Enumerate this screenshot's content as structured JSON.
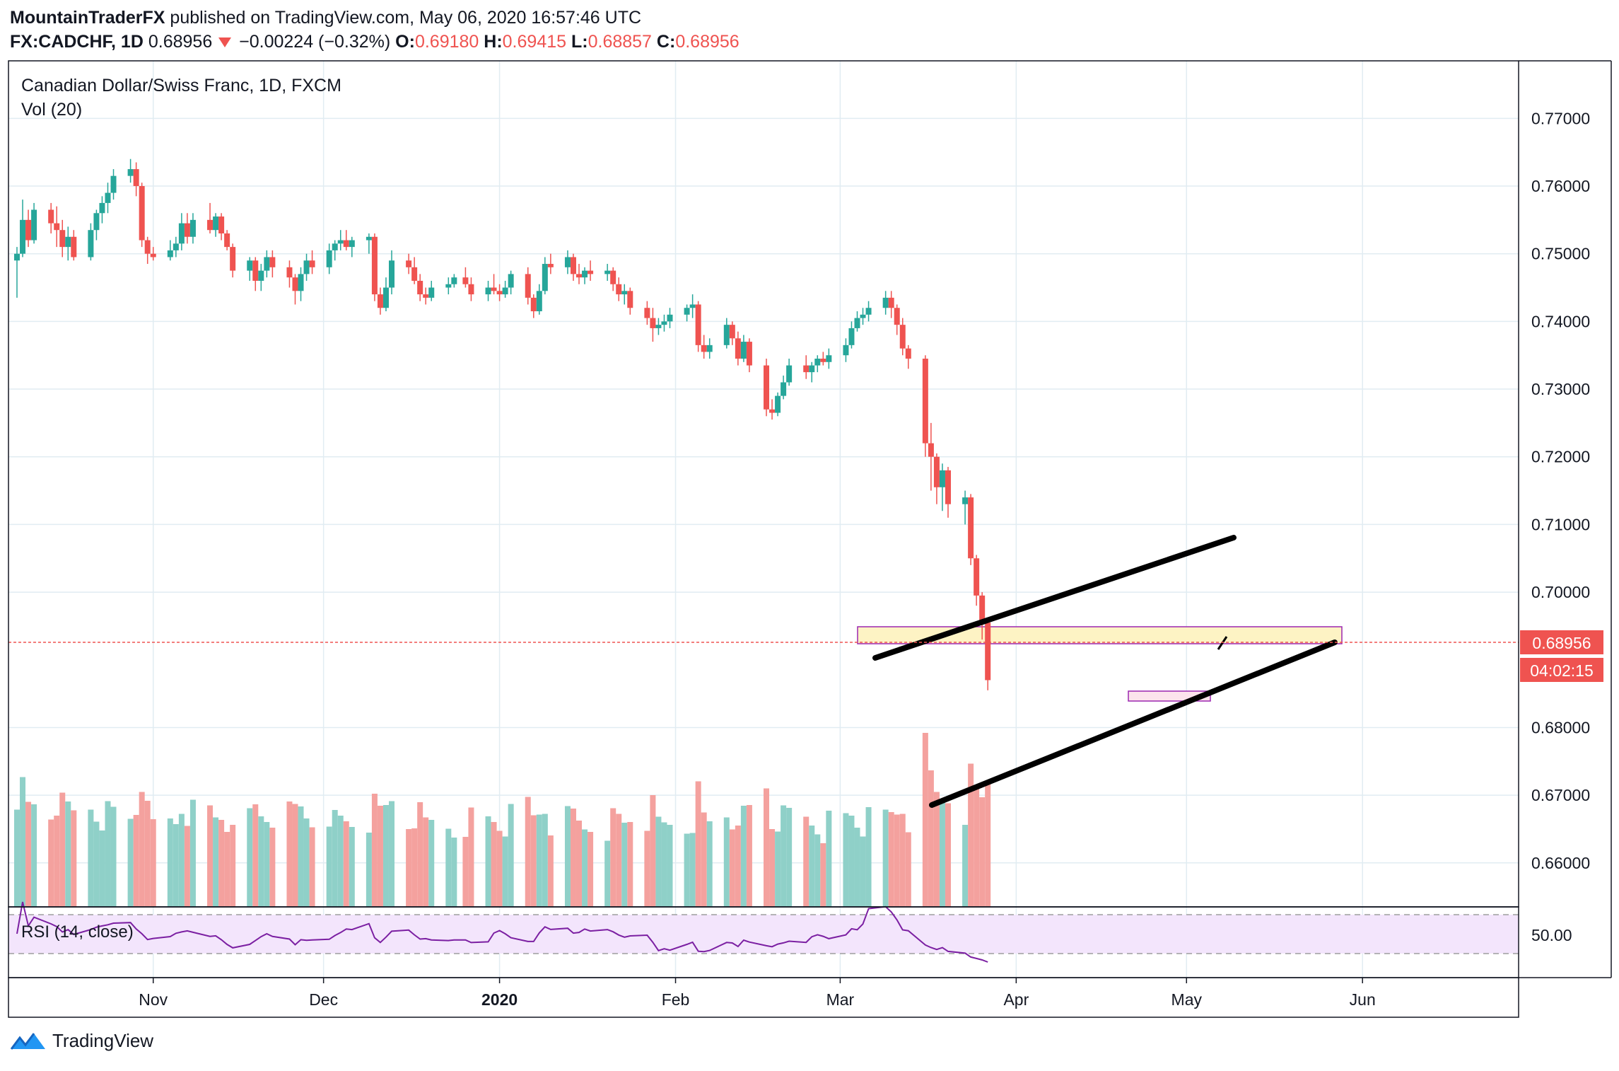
{
  "header": {
    "author": "MountainTraderFX",
    "published_text": "published on TradingView.com, May 06, 2020 16:57:46 UTC",
    "symbol": "FX:CADCHF, 1D",
    "last": "0.68956",
    "change": "−0.00224 (−0.32%)",
    "o_label": "O:",
    "o_value": "0.69180",
    "h_label": "H:",
    "h_value": "0.69415",
    "l_label": "L:",
    "l_value": "0.68857",
    "c_label": "C:",
    "c_value": "0.68956"
  },
  "pane": {
    "title": "Canadian Dollar/Swiss Franc, 1D, FXCM",
    "vol_label": "Vol (20)",
    "rsi_label": "RSI (14, close)",
    "price_tag": "0.68956",
    "countdown_tag": "04:02:15",
    "rsi_tick": "50.00"
  },
  "footer": {
    "brand": "TradingView"
  },
  "colors": {
    "up": "#26a69a",
    "down": "#ef5350",
    "up_vol": "#8fd0c8",
    "down_vol": "#f4a19e",
    "grid": "#e1ecf2",
    "zone_fill": "#fdf3c4",
    "zone_border": "#9c27b0",
    "rsi_fill": "#f3e5fc",
    "rsi_line": "#7b1fa2",
    "tag_bg": "#ef5350"
  },
  "chart_data": {
    "type": "candlestick",
    "title": "Canadian Dollar/Swiss Franc, 1D, FXCM",
    "ylim": [
      0.6535,
      0.7785
    ],
    "y_ticks": [
      "0.77000",
      "0.76000",
      "0.75000",
      "0.74000",
      "0.73000",
      "0.72000",
      "0.71000",
      "0.70000",
      "0.68000",
      "0.67000",
      "0.66000"
    ],
    "y_tick_values": [
      0.77,
      0.76,
      0.75,
      0.74,
      0.73,
      0.72,
      0.71,
      0.7,
      0.68,
      0.67,
      0.66
    ],
    "x_ticks": [
      "Nov",
      "Dec",
      "2020",
      "Feb",
      "Mar",
      "Apr",
      "May",
      "Jun"
    ],
    "x_tick_dates": [
      "2019-11-01",
      "2019-12-01",
      "2020-01-01",
      "2020-02-01",
      "2020-03-01",
      "2020-04-01",
      "2020-05-01",
      "2020-06-01"
    ],
    "x_range": [
      "2019-10-08",
      "2020-06-27"
    ],
    "ohlc": [
      {
        "d": "2019-10-08",
        "o": 0.749,
        "h": 0.751,
        "l": 0.7435,
        "c": 0.75
      },
      {
        "d": "2019-10-09",
        "o": 0.75,
        "h": 0.758,
        "l": 0.7495,
        "c": 0.755
      },
      {
        "d": "2019-10-10",
        "o": 0.755,
        "h": 0.7565,
        "l": 0.751,
        "c": 0.752
      },
      {
        "d": "2019-10-11",
        "o": 0.752,
        "h": 0.7575,
        "l": 0.7515,
        "c": 0.7565
      },
      {
        "d": "2019-10-14",
        "o": 0.7565,
        "h": 0.7575,
        "l": 0.753,
        "c": 0.7545
      },
      {
        "d": "2019-10-15",
        "o": 0.7545,
        "h": 0.757,
        "l": 0.751,
        "c": 0.7535
      },
      {
        "d": "2019-10-16",
        "o": 0.7535,
        "h": 0.755,
        "l": 0.7495,
        "c": 0.751
      },
      {
        "d": "2019-10-17",
        "o": 0.751,
        "h": 0.754,
        "l": 0.749,
        "c": 0.7525
      },
      {
        "d": "2019-10-18",
        "o": 0.7525,
        "h": 0.7535,
        "l": 0.749,
        "c": 0.7495
      },
      {
        "d": "2019-10-21",
        "o": 0.7495,
        "h": 0.7545,
        "l": 0.749,
        "c": 0.7535
      },
      {
        "d": "2019-10-22",
        "o": 0.7535,
        "h": 0.7565,
        "l": 0.752,
        "c": 0.756
      },
      {
        "d": "2019-10-23",
        "o": 0.756,
        "h": 0.7585,
        "l": 0.7545,
        "c": 0.7575
      },
      {
        "d": "2019-10-24",
        "o": 0.7575,
        "h": 0.7605,
        "l": 0.756,
        "c": 0.759
      },
      {
        "d": "2019-10-25",
        "o": 0.759,
        "h": 0.7625,
        "l": 0.758,
        "c": 0.7615
      },
      {
        "d": "2019-10-28",
        "o": 0.7615,
        "h": 0.764,
        "l": 0.7605,
        "c": 0.7625
      },
      {
        "d": "2019-10-29",
        "o": 0.7625,
        "h": 0.7635,
        "l": 0.7585,
        "c": 0.76
      },
      {
        "d": "2019-10-30",
        "o": 0.76,
        "h": 0.7605,
        "l": 0.751,
        "c": 0.752
      },
      {
        "d": "2019-10-31",
        "o": 0.752,
        "h": 0.7525,
        "l": 0.7485,
        "c": 0.75
      },
      {
        "d": "2019-11-01",
        "o": 0.75,
        "h": 0.751,
        "l": 0.749,
        "c": 0.7495
      },
      {
        "d": "2019-11-04",
        "o": 0.7495,
        "h": 0.752,
        "l": 0.749,
        "c": 0.7505
      },
      {
        "d": "2019-11-05",
        "o": 0.7505,
        "h": 0.7525,
        "l": 0.7495,
        "c": 0.7515
      },
      {
        "d": "2019-11-06",
        "o": 0.7515,
        "h": 0.756,
        "l": 0.7505,
        "c": 0.7545
      },
      {
        "d": "2019-11-07",
        "o": 0.7545,
        "h": 0.756,
        "l": 0.7515,
        "c": 0.7525
      },
      {
        "d": "2019-11-08",
        "o": 0.7525,
        "h": 0.756,
        "l": 0.7515,
        "c": 0.755
      },
      {
        "d": "2019-11-11",
        "o": 0.755,
        "h": 0.7575,
        "l": 0.753,
        "c": 0.7535
      },
      {
        "d": "2019-11-12",
        "o": 0.7535,
        "h": 0.756,
        "l": 0.7525,
        "c": 0.7555
      },
      {
        "d": "2019-11-13",
        "o": 0.7555,
        "h": 0.756,
        "l": 0.752,
        "c": 0.753
      },
      {
        "d": "2019-11-14",
        "o": 0.753,
        "h": 0.7535,
        "l": 0.7505,
        "c": 0.751
      },
      {
        "d": "2019-11-15",
        "o": 0.751,
        "h": 0.7515,
        "l": 0.7465,
        "c": 0.7475
      },
      {
        "d": "2019-11-18",
        "o": 0.7475,
        "h": 0.7495,
        "l": 0.746,
        "c": 0.749
      },
      {
        "d": "2019-11-19",
        "o": 0.749,
        "h": 0.7495,
        "l": 0.7445,
        "c": 0.746
      },
      {
        "d": "2019-11-20",
        "o": 0.746,
        "h": 0.7485,
        "l": 0.7445,
        "c": 0.7475
      },
      {
        "d": "2019-11-21",
        "o": 0.7475,
        "h": 0.7505,
        "l": 0.7465,
        "c": 0.7495
      },
      {
        "d": "2019-11-22",
        "o": 0.7495,
        "h": 0.7505,
        "l": 0.7465,
        "c": 0.748
      },
      {
        "d": "2019-11-25",
        "o": 0.748,
        "h": 0.749,
        "l": 0.745,
        "c": 0.7465
      },
      {
        "d": "2019-11-26",
        "o": 0.7465,
        "h": 0.747,
        "l": 0.7425,
        "c": 0.7445
      },
      {
        "d": "2019-11-27",
        "o": 0.7445,
        "h": 0.748,
        "l": 0.743,
        "c": 0.747
      },
      {
        "d": "2019-11-28",
        "o": 0.747,
        "h": 0.75,
        "l": 0.746,
        "c": 0.749
      },
      {
        "d": "2019-11-29",
        "o": 0.749,
        "h": 0.7505,
        "l": 0.747,
        "c": 0.748
      },
      {
        "d": "2019-12-02",
        "o": 0.748,
        "h": 0.7515,
        "l": 0.747,
        "c": 0.7505
      },
      {
        "d": "2019-12-03",
        "o": 0.7505,
        "h": 0.752,
        "l": 0.749,
        "c": 0.7515
      },
      {
        "d": "2019-12-04",
        "o": 0.7515,
        "h": 0.7535,
        "l": 0.7505,
        "c": 0.752
      },
      {
        "d": "2019-12-05",
        "o": 0.752,
        "h": 0.7535,
        "l": 0.7505,
        "c": 0.751
      },
      {
        "d": "2019-12-06",
        "o": 0.751,
        "h": 0.7525,
        "l": 0.7495,
        "c": 0.752
      },
      {
        "d": "2019-12-09",
        "o": 0.752,
        "h": 0.753,
        "l": 0.75,
        "c": 0.7525
      },
      {
        "d": "2019-12-10",
        "o": 0.7525,
        "h": 0.753,
        "l": 0.743,
        "c": 0.744
      },
      {
        "d": "2019-12-11",
        "o": 0.744,
        "h": 0.745,
        "l": 0.741,
        "c": 0.742
      },
      {
        "d": "2019-12-12",
        "o": 0.742,
        "h": 0.7465,
        "l": 0.7415,
        "c": 0.745
      },
      {
        "d": "2019-12-13",
        "o": 0.745,
        "h": 0.7505,
        "l": 0.744,
        "c": 0.749
      },
      {
        "d": "2019-12-16",
        "o": 0.749,
        "h": 0.75,
        "l": 0.747,
        "c": 0.748
      },
      {
        "d": "2019-12-17",
        "o": 0.748,
        "h": 0.7495,
        "l": 0.7455,
        "c": 0.746
      },
      {
        "d": "2019-12-18",
        "o": 0.746,
        "h": 0.747,
        "l": 0.743,
        "c": 0.744
      },
      {
        "d": "2019-12-19",
        "o": 0.744,
        "h": 0.745,
        "l": 0.7425,
        "c": 0.7435
      },
      {
        "d": "2019-12-20",
        "o": 0.7435,
        "h": 0.746,
        "l": 0.743,
        "c": 0.745
      },
      {
        "d": "2019-12-23",
        "o": 0.745,
        "h": 0.7465,
        "l": 0.744,
        "c": 0.7455
      },
      {
        "d": "2019-12-24",
        "o": 0.7455,
        "h": 0.747,
        "l": 0.745,
        "c": 0.7465
      },
      {
        "d": "2019-12-26",
        "o": 0.7465,
        "h": 0.748,
        "l": 0.745,
        "c": 0.7455
      },
      {
        "d": "2019-12-27",
        "o": 0.7455,
        "h": 0.7465,
        "l": 0.743,
        "c": 0.744
      },
      {
        "d": "2019-12-30",
        "o": 0.744,
        "h": 0.746,
        "l": 0.743,
        "c": 0.745
      },
      {
        "d": "2019-12-31",
        "o": 0.745,
        "h": 0.747,
        "l": 0.744,
        "c": 0.7445
      },
      {
        "d": "2020-01-01",
        "o": 0.7445,
        "h": 0.7455,
        "l": 0.743,
        "c": 0.744
      },
      {
        "d": "2020-01-02",
        "o": 0.744,
        "h": 0.746,
        "l": 0.7435,
        "c": 0.745
      },
      {
        "d": "2020-01-03",
        "o": 0.745,
        "h": 0.7475,
        "l": 0.744,
        "c": 0.747
      },
      {
        "d": "2020-01-06",
        "o": 0.747,
        "h": 0.748,
        "l": 0.7425,
        "c": 0.7435
      },
      {
        "d": "2020-01-07",
        "o": 0.7435,
        "h": 0.744,
        "l": 0.7405,
        "c": 0.7415
      },
      {
        "d": "2020-01-08",
        "o": 0.7415,
        "h": 0.7455,
        "l": 0.741,
        "c": 0.7445
      },
      {
        "d": "2020-01-09",
        "o": 0.7445,
        "h": 0.7495,
        "l": 0.744,
        "c": 0.7485
      },
      {
        "d": "2020-01-10",
        "o": 0.7485,
        "h": 0.75,
        "l": 0.747,
        "c": 0.748
      },
      {
        "d": "2020-01-13",
        "o": 0.748,
        "h": 0.7505,
        "l": 0.747,
        "c": 0.7495
      },
      {
        "d": "2020-01-14",
        "o": 0.7495,
        "h": 0.75,
        "l": 0.746,
        "c": 0.747
      },
      {
        "d": "2020-01-15",
        "o": 0.747,
        "h": 0.7485,
        "l": 0.7455,
        "c": 0.7465
      },
      {
        "d": "2020-01-16",
        "o": 0.7465,
        "h": 0.748,
        "l": 0.7455,
        "c": 0.7475
      },
      {
        "d": "2020-01-17",
        "o": 0.7475,
        "h": 0.749,
        "l": 0.746,
        "c": 0.747
      },
      {
        "d": "2020-01-20",
        "o": 0.747,
        "h": 0.7485,
        "l": 0.746,
        "c": 0.7475
      },
      {
        "d": "2020-01-21",
        "o": 0.7475,
        "h": 0.748,
        "l": 0.7445,
        "c": 0.7455
      },
      {
        "d": "2020-01-22",
        "o": 0.7455,
        "h": 0.7465,
        "l": 0.743,
        "c": 0.744
      },
      {
        "d": "2020-01-23",
        "o": 0.744,
        "h": 0.7455,
        "l": 0.7425,
        "c": 0.7445
      },
      {
        "d": "2020-01-24",
        "o": 0.7445,
        "h": 0.745,
        "l": 0.741,
        "c": 0.742
      },
      {
        "d": "2020-01-27",
        "o": 0.742,
        "h": 0.743,
        "l": 0.7395,
        "c": 0.7405
      },
      {
        "d": "2020-01-28",
        "o": 0.7405,
        "h": 0.742,
        "l": 0.737,
        "c": 0.739
      },
      {
        "d": "2020-01-29",
        "o": 0.739,
        "h": 0.7405,
        "l": 0.738,
        "c": 0.7395
      },
      {
        "d": "2020-01-30",
        "o": 0.7395,
        "h": 0.741,
        "l": 0.7385,
        "c": 0.74
      },
      {
        "d": "2020-01-31",
        "o": 0.74,
        "h": 0.742,
        "l": 0.739,
        "c": 0.741
      },
      {
        "d": "2020-02-03",
        "o": 0.741,
        "h": 0.7425,
        "l": 0.74,
        "c": 0.742
      },
      {
        "d": "2020-02-04",
        "o": 0.742,
        "h": 0.744,
        "l": 0.7405,
        "c": 0.7425
      },
      {
        "d": "2020-02-05",
        "o": 0.7425,
        "h": 0.743,
        "l": 0.7355,
        "c": 0.7365
      },
      {
        "d": "2020-02-06",
        "o": 0.7365,
        "h": 0.738,
        "l": 0.7345,
        "c": 0.7355
      },
      {
        "d": "2020-02-07",
        "o": 0.7355,
        "h": 0.7375,
        "l": 0.7345,
        "c": 0.7365
      },
      {
        "d": "2020-02-10",
        "o": 0.7365,
        "h": 0.7405,
        "l": 0.736,
        "c": 0.7395
      },
      {
        "d": "2020-02-11",
        "o": 0.7395,
        "h": 0.74,
        "l": 0.7365,
        "c": 0.7375
      },
      {
        "d": "2020-02-12",
        "o": 0.7375,
        "h": 0.7385,
        "l": 0.7335,
        "c": 0.7345
      },
      {
        "d": "2020-02-13",
        "o": 0.7345,
        "h": 0.738,
        "l": 0.734,
        "c": 0.737
      },
      {
        "d": "2020-02-14",
        "o": 0.737,
        "h": 0.7375,
        "l": 0.7325,
        "c": 0.7335
      },
      {
        "d": "2020-02-17",
        "o": 0.7335,
        "h": 0.7345,
        "l": 0.726,
        "c": 0.727
      },
      {
        "d": "2020-02-18",
        "o": 0.727,
        "h": 0.7285,
        "l": 0.7255,
        "c": 0.7265
      },
      {
        "d": "2020-02-19",
        "o": 0.7265,
        "h": 0.7295,
        "l": 0.726,
        "c": 0.729
      },
      {
        "d": "2020-02-20",
        "o": 0.729,
        "h": 0.732,
        "l": 0.7285,
        "c": 0.731
      },
      {
        "d": "2020-02-21",
        "o": 0.731,
        "h": 0.7345,
        "l": 0.7305,
        "c": 0.7335
      },
      {
        "d": "2020-02-24",
        "o": 0.7335,
        "h": 0.735,
        "l": 0.7315,
        "c": 0.7325
      },
      {
        "d": "2020-02-25",
        "o": 0.7325,
        "h": 0.734,
        "l": 0.731,
        "c": 0.7335
      },
      {
        "d": "2020-02-26",
        "o": 0.7335,
        "h": 0.735,
        "l": 0.7325,
        "c": 0.7345
      },
      {
        "d": "2020-02-27",
        "o": 0.7345,
        "h": 0.7355,
        "l": 0.7335,
        "c": 0.734
      },
      {
        "d": "2020-02-28",
        "o": 0.734,
        "h": 0.736,
        "l": 0.733,
        "c": 0.735
      },
      {
        "d": "2020-03-02",
        "o": 0.735,
        "h": 0.7375,
        "l": 0.734,
        "c": 0.7365
      },
      {
        "d": "2020-03-03",
        "o": 0.7365,
        "h": 0.74,
        "l": 0.736,
        "c": 0.739
      },
      {
        "d": "2020-03-04",
        "o": 0.739,
        "h": 0.7415,
        "l": 0.7385,
        "c": 0.7405
      },
      {
        "d": "2020-03-05",
        "o": 0.7405,
        "h": 0.742,
        "l": 0.7395,
        "c": 0.741
      },
      {
        "d": "2020-03-06",
        "o": 0.741,
        "h": 0.743,
        "l": 0.74,
        "c": 0.742
      },
      {
        "d": "2020-03-09",
        "o": 0.742,
        "h": 0.7445,
        "l": 0.741,
        "c": 0.7435
      },
      {
        "d": "2020-03-10",
        "o": 0.7435,
        "h": 0.7445,
        "l": 0.7405,
        "c": 0.742
      },
      {
        "d": "2020-03-11",
        "o": 0.742,
        "h": 0.7425,
        "l": 0.738,
        "c": 0.7395
      },
      {
        "d": "2020-03-12",
        "o": 0.7395,
        "h": 0.7405,
        "l": 0.735,
        "c": 0.736
      },
      {
        "d": "2020-03-13",
        "o": 0.736,
        "h": 0.7365,
        "l": 0.733,
        "c": 0.7345
      },
      {
        "d": "2020-03-16",
        "o": 0.7345,
        "h": 0.735,
        "l": 0.72,
        "c": 0.722
      },
      {
        "d": "2020-03-17",
        "o": 0.722,
        "h": 0.725,
        "l": 0.715,
        "c": 0.72
      },
      {
        "d": "2020-03-18",
        "o": 0.72,
        "h": 0.7205,
        "l": 0.713,
        "c": 0.7155
      },
      {
        "d": "2020-03-19",
        "o": 0.7155,
        "h": 0.719,
        "l": 0.712,
        "c": 0.718
      },
      {
        "d": "2020-03-20",
        "o": 0.718,
        "h": 0.7185,
        "l": 0.711,
        "c": 0.713
      },
      {
        "d": "2020-03-23",
        "o": 0.713,
        "h": 0.715,
        "l": 0.71,
        "c": 0.714
      },
      {
        "d": "2020-03-24",
        "o": 0.714,
        "h": 0.7145,
        "l": 0.704,
        "c": 0.705
      },
      {
        "d": "2020-03-25",
        "o": 0.705,
        "h": 0.7055,
        "l": 0.698,
        "c": 0.6995
      },
      {
        "d": "2020-03-26",
        "o": 0.6995,
        "h": 0.7,
        "l": 0.693,
        "c": 0.6955
      },
      {
        "d": "2020-03-27",
        "o": 0.6955,
        "h": 0.696,
        "l": 0.6855,
        "c": 0.687
      }
    ]
  }
}
